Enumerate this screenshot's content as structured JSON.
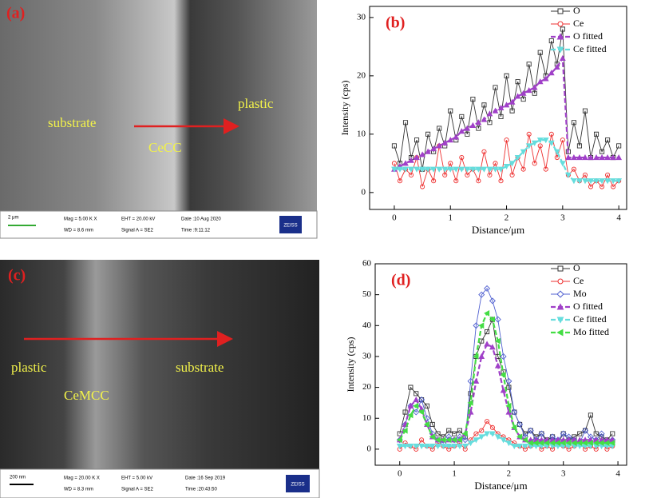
{
  "images": [
    {
      "panel_label": "(a)",
      "labels": [
        "substrate",
        "CeCC",
        "plastic"
      ],
      "scale": "2 μm",
      "info": [
        "Mag =  5.00 K X",
        "WD =  8.6 mm",
        "EHT = 20.00 kV",
        "Signal A = SE2",
        "Date :10 Aug 2020",
        "Time :9:11:12"
      ],
      "brand": "ZEISS"
    },
    {
      "panel_label": "(c)",
      "labels": [
        "plastic",
        "CeMCC",
        "substrate"
      ],
      "scale": "200 nm",
      "info": [
        "Mag =  20.00 K X",
        "WD =  8.3 mm",
        "EHT =  5.00 kV",
        "Signal A = SE2",
        "Date :16 Sep 2019",
        "Time :20:43:50"
      ],
      "brand": "ZEISS"
    }
  ],
  "chart_data": [
    {
      "type": "line",
      "panel_label": "(b)",
      "xlabel": "Distance/μm",
      "ylabel": "Intensity (cps)",
      "legend": "upper right",
      "xlim": [
        -0.44,
        4.14
      ],
      "ylim": [
        -2.9,
        31.9
      ],
      "xticks": [
        0,
        1,
        2,
        3,
        4
      ],
      "yticks": [
        0,
        10,
        20,
        30
      ],
      "x": [
        0,
        0.1,
        0.2,
        0.3,
        0.4,
        0.5,
        0.6,
        0.7,
        0.8,
        0.9,
        1,
        1.1,
        1.2,
        1.3,
        1.4,
        1.5,
        1.6,
        1.7,
        1.8,
        1.9,
        2,
        2.1,
        2.2,
        2.3,
        2.4,
        2.5,
        2.6,
        2.7,
        2.8,
        2.9,
        3,
        3.1,
        3.2,
        3.3,
        3.4,
        3.5,
        3.6,
        3.7,
        3.8,
        3.9,
        4
      ],
      "series": [
        {
          "name": "O",
          "color": "#333333",
          "marker": "square",
          "line_style": "solid",
          "values": [
            8,
            5,
            12,
            6,
            9,
            4,
            10,
            7,
            11,
            8,
            14,
            9,
            13,
            10,
            16,
            11,
            15,
            12,
            18,
            13,
            20,
            14,
            19,
            16,
            22,
            17,
            24,
            20,
            26,
            22,
            28,
            7,
            12,
            8,
            14,
            6,
            10,
            7,
            9,
            6,
            8
          ]
        },
        {
          "name": "Ce",
          "color": "#ee3030",
          "marker": "circle",
          "line_style": "solid",
          "values": [
            5,
            2,
            4,
            3,
            6,
            1,
            4,
            2,
            8,
            3,
            5,
            2,
            6,
            3,
            4,
            2,
            7,
            3,
            5,
            2,
            9,
            3,
            6,
            4,
            10,
            5,
            8,
            4,
            10,
            6,
            9,
            3,
            4,
            2,
            3,
            1,
            2,
            1,
            3,
            1,
            2
          ]
        },
        {
          "name": "O fitted",
          "color": "#a040c8",
          "marker": "triangle-up",
          "line_style": "dashed",
          "values": [
            4,
            4.5,
            5,
            5.5,
            6,
            6.5,
            7,
            7.5,
            8,
            8.5,
            9,
            9.5,
            10.5,
            11,
            11.5,
            12,
            12.5,
            13.5,
            14,
            14.5,
            15,
            15.5,
            16.5,
            17,
            17.5,
            18,
            19,
            19.5,
            20.5,
            21.5,
            23,
            6,
            6,
            6,
            6,
            6,
            6,
            6,
            6,
            6,
            6
          ]
        },
        {
          "name": "Ce fitted",
          "color": "#66dddd",
          "marker": "triangle-down",
          "line_style": "dashed",
          "values": [
            4,
            4,
            4,
            4,
            4,
            4,
            4,
            4,
            4,
            4,
            4,
            4,
            4,
            4,
            4,
            4,
            4,
            4,
            4,
            4,
            4.5,
            5,
            6,
            7,
            8,
            8.5,
            9,
            9,
            8.5,
            7,
            5,
            3,
            2,
            2,
            2,
            2,
            2,
            2,
            2,
            2,
            2
          ]
        }
      ]
    },
    {
      "type": "line",
      "panel_label": "(d)",
      "xlabel": "Distance/μm",
      "ylabel": "Intensity (cps)",
      "legend": "upper right",
      "xlim": [
        -0.45,
        4.16
      ],
      "ylim": [
        -5.2,
        60
      ],
      "xticks": [
        0,
        1,
        2,
        3,
        4
      ],
      "yticks": [
        0,
        10,
        20,
        30,
        40,
        50,
        60
      ],
      "x": [
        0,
        0.1,
        0.2,
        0.3,
        0.4,
        0.5,
        0.6,
        0.7,
        0.8,
        0.9,
        1,
        1.1,
        1.2,
        1.3,
        1.4,
        1.5,
        1.6,
        1.7,
        1.8,
        1.9,
        2,
        2.1,
        2.2,
        2.3,
        2.4,
        2.5,
        2.6,
        2.7,
        2.8,
        2.9,
        3,
        3.1,
        3.2,
        3.3,
        3.4,
        3.5,
        3.6,
        3.7,
        3.8,
        3.9
      ],
      "series": [
        {
          "name": "O",
          "color": "#333333",
          "marker": "square",
          "line_style": "solid",
          "values": [
            5,
            12,
            20,
            18,
            16,
            14,
            8,
            5,
            4,
            6,
            5,
            6,
            4,
            18,
            30,
            35,
            38,
            42,
            30,
            25,
            20,
            12,
            8,
            5,
            6,
            4,
            5,
            3,
            4,
            2,
            5,
            3,
            4,
            5,
            6,
            11,
            5,
            4,
            3,
            5
          ]
        },
        {
          "name": "Ce",
          "color": "#ee3030",
          "marker": "circle",
          "line_style": "solid",
          "values": [
            0,
            2,
            1,
            0,
            3,
            1,
            0,
            2,
            1,
            0,
            1,
            2,
            0,
            3,
            5,
            6,
            9,
            7,
            5,
            4,
            3,
            2,
            1,
            0,
            1,
            2,
            0,
            1,
            0,
            2,
            1,
            0,
            1,
            2,
            0,
            1,
            0,
            2,
            0,
            1
          ]
        },
        {
          "name": "Mo",
          "color": "#5060d0",
          "marker": "diamond",
          "line_style": "solid",
          "values": [
            3,
            8,
            14,
            12,
            16,
            10,
            5,
            3,
            2,
            4,
            3,
            4,
            3,
            22,
            40,
            50,
            52,
            48,
            42,
            30,
            22,
            12,
            8,
            4,
            6,
            3,
            5,
            2,
            4,
            3,
            5,
            4,
            3,
            2,
            6,
            4,
            3,
            5,
            2,
            3
          ]
        },
        {
          "name": "O fitted",
          "color": "#a040c8",
          "marker": "triangle-up",
          "line_style": "dashed",
          "values": [
            3,
            8,
            14,
            16,
            13,
            8,
            4,
            3,
            3,
            3,
            3,
            3,
            5,
            12,
            22,
            30,
            34,
            33,
            27,
            19,
            12,
            7,
            4,
            3,
            3,
            3,
            3,
            3,
            3,
            3,
            3,
            3,
            3,
            3,
            3,
            3,
            3,
            3,
            3,
            3
          ]
        },
        {
          "name": "Ce fitted",
          "color": "#66dddd",
          "marker": "triangle-down",
          "line_style": "dashed",
          "values": [
            1,
            1,
            1,
            1,
            1,
            1,
            1,
            1,
            1,
            1,
            1,
            1,
            1,
            2,
            3,
            4,
            5,
            5,
            4,
            3,
            2,
            1,
            1,
            1,
            1,
            1,
            1,
            1,
            1,
            1,
            1,
            1,
            1,
            1,
            1,
            1,
            1,
            1,
            1,
            1
          ]
        },
        {
          "name": "Mo fitted",
          "color": "#44dd44",
          "marker": "triangle-left",
          "line_style": "dashed",
          "values": [
            3,
            6,
            11,
            14,
            12,
            8,
            4,
            3,
            3,
            3,
            3,
            3,
            5,
            15,
            30,
            40,
            44,
            42,
            35,
            24,
            14,
            7,
            4,
            3,
            2,
            2,
            2,
            2,
            2,
            2,
            2,
            2,
            2,
            2,
            2,
            2,
            2,
            2,
            2,
            2
          ]
        }
      ]
    }
  ]
}
